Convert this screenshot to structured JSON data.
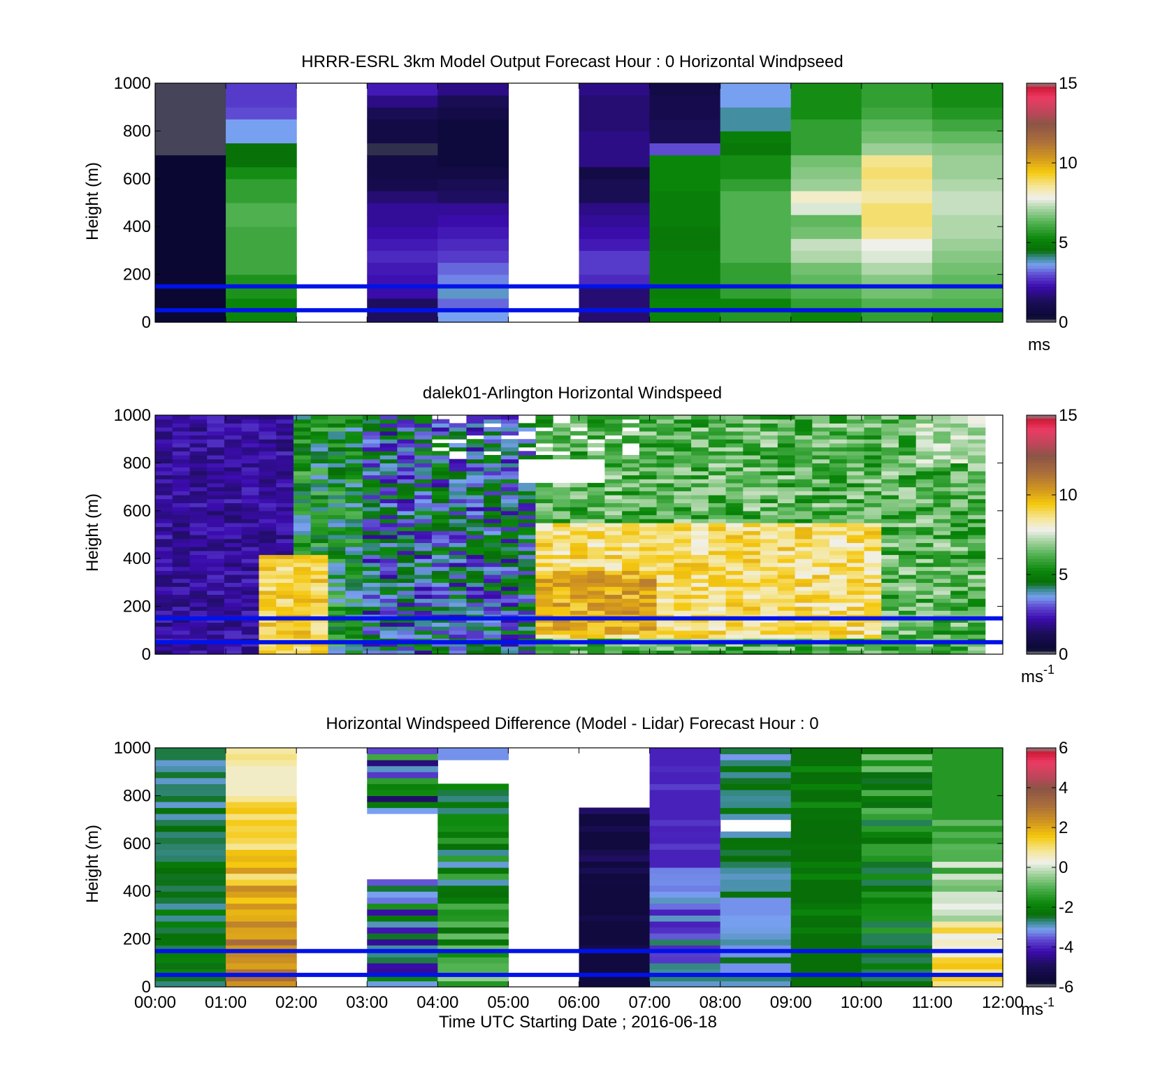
{
  "chart_data": [
    {
      "type": "heatmap",
      "title": "HRRR-ESRL 3km Model Output   Forecast Hour : 0 Horizontal Windpseed",
      "ylabel": "Height (m)",
      "xlabel": "",
      "xlim": [
        0,
        12
      ],
      "ylim": [
        0,
        1000
      ],
      "yticks": [
        "0",
        "200",
        "400",
        "600",
        "800",
        "1000"
      ],
      "xtick_labels": [],
      "colorbar": {
        "range": [
          0,
          15
        ],
        "ticks": [
          "0",
          "5",
          "10",
          "15"
        ],
        "unit": "ms",
        "unit_sup": ""
      },
      "hlines": [
        50,
        150
      ],
      "line_color": "#0012e8",
      "cols": 12,
      "rows": 20,
      "grid": [
        "00000000000000000000",
        "44444445555555442222",
        "XXXXXXXXXXXXXXXXXXXX",
        "11111122222111100003",
        "22222333111111111222",
        "XXXXXXXXXXXXXXXXXXXX",
        "11222222222111222222",
        "55555555555553000000",
        "55555565555555544555",
        "56666666666666555555",
        "66666667777777666666",
        "56666666666666665555"
      ],
      "cells": [
        [
          0.3,
          0.3,
          0.3,
          0.3,
          0.3,
          0.3,
          0.3,
          0.3,
          0.3,
          0.3,
          0.3,
          0.3,
          0.3,
          0.3,
          0.15,
          0.15,
          0.15,
          0.15,
          0.15,
          0.15
        ],
        [
          5.2,
          5.2,
          5.5,
          5.5,
          6.0,
          6.0,
          6.0,
          6.0,
          6.2,
          6.2,
          5.8,
          5.8,
          5.4,
          4.6,
          4.6,
          3.6,
          3.6,
          3.0,
          2.8,
          2.8
        ],
        [],
        [
          1.4,
          1.4,
          2.2,
          2.3,
          2.4,
          2.6,
          2.4,
          2.2,
          2.0,
          2.0,
          1.6,
          1.0,
          0.8,
          0.8,
          0.2,
          0.8,
          0.8,
          1.2,
          1.8,
          2.4
        ],
        [
          3.6,
          3.2,
          3.8,
          3.4,
          3.2,
          2.8,
          2.6,
          2.4,
          2.2,
          2.0,
          1.4,
          1.2,
          0.8,
          0.6,
          0.6,
          0.6,
          0.6,
          0.9,
          1.2,
          1.8
        ],
        [],
        [
          1.6,
          1.6,
          1.6,
          2.6,
          2.8,
          2.8,
          2.4,
          2.2,
          2.0,
          1.8,
          1.2,
          1.2,
          0.8,
          1.8,
          1.8,
          1.8,
          1.6,
          1.6,
          1.6,
          1.8
        ],
        [
          5.2,
          5.2,
          5.0,
          5.0,
          5.0,
          5.0,
          4.8,
          4.8,
          5.0,
          5.0,
          5.0,
          5.2,
          5.2,
          5.2,
          3.0,
          1.2,
          1.2,
          1.0,
          1.0,
          0.8
        ],
        [
          5.6,
          5.2,
          5.8,
          5.8,
          5.8,
          6.2,
          6.2,
          6.2,
          6.2,
          6.2,
          6.2,
          5.8,
          5.4,
          5.4,
          4.8,
          5.0,
          4.0,
          4.0,
          3.6,
          3.6
        ],
        [
          5.2,
          5.8,
          6.2,
          6.4,
          6.6,
          7.2,
          7.4,
          6.6,
          6.4,
          7.6,
          8.1,
          7.0,
          6.8,
          6.6,
          5.8,
          5.8,
          5.8,
          5.4,
          5.4,
          5.4
        ],
        [
          5.8,
          6.2,
          6.6,
          6.8,
          7.2,
          7.6,
          7.8,
          8.6,
          8.8,
          8.8,
          8.4,
          8.6,
          8.8,
          8.6,
          7.0,
          6.6,
          6.4,
          6.0,
          5.8,
          5.8
        ],
        [
          5.4,
          6.2,
          6.4,
          6.4,
          6.6,
          6.8,
          7.0,
          7.2,
          7.2,
          7.4,
          7.4,
          7.2,
          7.0,
          7.0,
          6.8,
          6.4,
          6.0,
          5.6,
          5.4,
          5.4
        ]
      ]
    },
    {
      "type": "heatmap",
      "title": "dalek01-Arlington  Horizontal Windspeed",
      "ylabel": "Height (m)",
      "xlabel": "",
      "xlim": [
        0,
        12
      ],
      "ylim": [
        0,
        1000
      ],
      "yticks": [
        "0",
        "200",
        "400",
        "600",
        "800",
        "1000"
      ],
      "xtick_labels": [],
      "colorbar": {
        "range": [
          0,
          15
        ],
        "ticks": [
          "0",
          "5",
          "10",
          "15"
        ],
        "unit": "ms",
        "unit_sup": "-1"
      },
      "hlines": [
        50,
        150
      ],
      "line_color": "#0012e8",
      "generated": "lidar",
      "cols": 48,
      "rows": 60,
      "data_xmax": 11.75
    },
    {
      "type": "heatmap",
      "title": "Horizontal Windspeed Difference (Model - Lidar) Forecast Hour : 0",
      "ylabel": "Height (m)",
      "xlabel": "Time UTC  Starting Date ; 2016-06-18",
      "xlim": [
        0,
        12
      ],
      "ylim": [
        0,
        1000
      ],
      "yticks": [
        "0",
        "200",
        "400",
        "600",
        "800",
        "1000"
      ],
      "xtick_labels": [
        "00:00",
        "01:00",
        "02:00",
        "03:00",
        "04:00",
        "05:00",
        "06:00",
        "07:00",
        "08:00",
        "09:00",
        "10:00",
        "11:00",
        "12:00"
      ],
      "colorbar": {
        "range": [
          -6,
          6
        ],
        "ticks": [
          "-6",
          "-4",
          "-2",
          "0",
          "2",
          "4",
          "6"
        ],
        "unit": "ms",
        "unit_sup": "-1"
      },
      "hlines": [
        50,
        150
      ],
      "line_color": "#0012e8",
      "cols": 12,
      "rows": 40,
      "grid": [
        "0000000000000000000000000000000000000000",
        "0000000000000000000000000000000000000000",
        "XXXXXXXXXXXXXXXXXXXXXXXXXXXXXXXXXXXXXXXX",
        "000000000000000000XXXXXXXXXXX00000000000",
        "0000000000000000000000000000000000XXXX00",
        "XXXXXXXXXXXXXXXXXXXXXXXXXXXXXXXXXXXXXXXX",
        "000000000000000000000000000000XXXXXXXXXX",
        "0000000000000000000000000000000000000000",
        "00000000000000000000000000XX000000000000",
        "0000000000000000000000000000000000000000",
        "0000000000000000000000000000000000000000",
        "0000000000000000000000000000000000000000"
      ],
      "profiles": [
        {
          "lo": -3.0,
          "hi": -1.2,
          "base": -2.2,
          "top": -3.0
        },
        {
          "lo": 0.5,
          "hi": 3.2,
          "base": 3.0,
          "top": 0.2
        },
        {},
        {
          "lo": -5.0,
          "hi": 1.6,
          "base": -3.0,
          "top": -3.0
        },
        {
          "lo": -3.2,
          "hi": 0.2,
          "base": -1.2,
          "top": -3.0
        },
        {},
        {
          "lo": -5.5,
          "hi": -2.0,
          "base": -6.0,
          "top": -5.6
        },
        {
          "lo": -4.0,
          "hi": -1.0,
          "base": -3.0,
          "top": -4.8
        },
        {
          "lo": -3.2,
          "hi": -1.0,
          "base": -3.0,
          "top": -2.6
        },
        {
          "lo": -2.4,
          "hi": 0.4,
          "base": -2.6,
          "top": -2.4
        },
        {
          "lo": -2.6,
          "hi": 1.0,
          "base": -2.6,
          "top": -1.4
        },
        {
          "lo": -1.5,
          "hi": 1.6,
          "base": 1.6,
          "top": -3.0
        }
      ]
    }
  ]
}
